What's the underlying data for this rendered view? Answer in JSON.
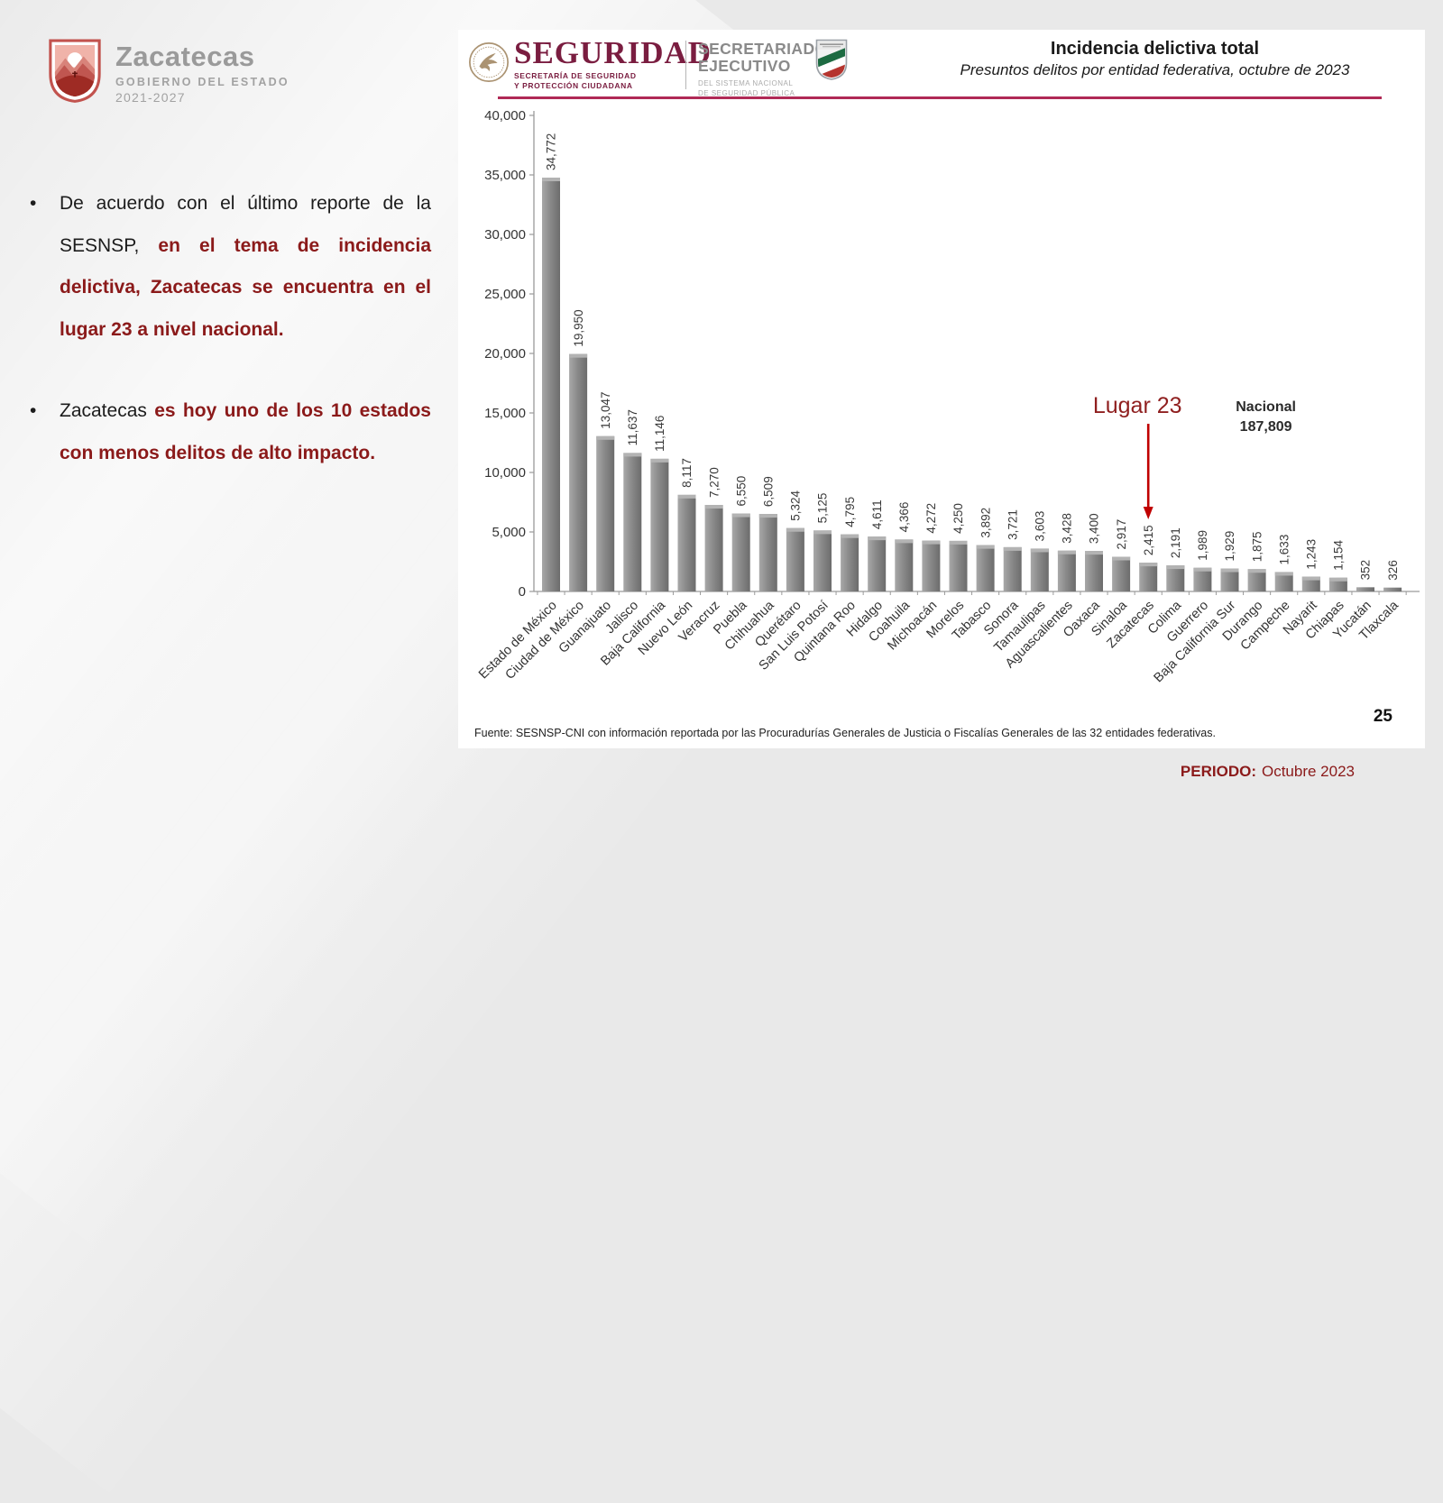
{
  "logo": {
    "name": "Zacatecas",
    "subtitle": "GOBIERNO DEL ESTADO",
    "years": "2021-2027"
  },
  "bullets": [
    {
      "normal": "De acuerdo con el último reporte de la SESNSP, ",
      "highlight": "en el tema de incidencia delictiva, Zacatecas se encuentra en el lugar 23 a nivel nacional."
    },
    {
      "normal": "Zacatecas ",
      "highlight": "es hoy uno de los 10 estados con menos delitos de alto impacto."
    }
  ],
  "header": {
    "brand": "SEGURIDAD",
    "brand_sub1": "SECRETARÍA DE SEGURIDAD",
    "brand_sub2": "Y PROTECCIÓN CIUDADANA",
    "org1": "SECRETARIADO",
    "org2": "EJECUTIVO",
    "org_sub1": "DEL SISTEMA NACIONAL",
    "org_sub2": "DE SEGURIDAD PÚBLICA",
    "title": "Incidencia delictiva total",
    "subtitle": "Presuntos delitos por entidad federativa, octubre de 2023"
  },
  "chart_data": {
    "type": "bar",
    "title": "Incidencia delictiva total",
    "xlabel": "",
    "ylabel": "",
    "ylim": [
      0,
      40000
    ],
    "ytick_step": 5000,
    "grid": false,
    "categories": [
      "Estado de México",
      "Ciudad de México",
      "Guanajuato",
      "Jalisco",
      "Baja California",
      "Nuevo León",
      "Veracruz",
      "Puebla",
      "Chihuahua",
      "Querétaro",
      "San Luis Potosí",
      "Quintana Roo",
      "Hidalgo",
      "Coahuila",
      "Michoacán",
      "Morelos",
      "Tabasco",
      "Sonora",
      "Tamaulipas",
      "Aguascalientes",
      "Oaxaca",
      "Sinaloa",
      "Zacatecas",
      "Colima",
      "Guerrero",
      "Baja California Sur",
      "Durango",
      "Campeche",
      "Nayarit",
      "Chiapas",
      "Yucatán",
      "Tlaxcala"
    ],
    "values": [
      34772,
      19950,
      13047,
      11637,
      11146,
      8117,
      7270,
      6550,
      6509,
      5324,
      5125,
      4795,
      4611,
      4366,
      4272,
      4250,
      3892,
      3721,
      3603,
      3428,
      3400,
      2917,
      2415,
      2191,
      1989,
      1929,
      1875,
      1633,
      1243,
      1154,
      352,
      326
    ],
    "annotations": {
      "lugar_label": "Lugar 23",
      "highlight_index": 22,
      "highlight_state": "Zacatecas",
      "nacional_label": "Nacional",
      "nacional_value": "187,809"
    }
  },
  "footer": {
    "source": "Fuente: SESNSP-CNI con información reportada por las Procuradurías Generales de Justicia o Fiscalías Generales de las 32 entidades federativas."
  },
  "page_number": "25",
  "period": {
    "label": "PERIODO:",
    "value": "Octubre 2023"
  },
  "colors": {
    "brand_maroon": "#7a1d40",
    "rule_crimson": "#b02a56",
    "dark_red_text": "#8b1a1a",
    "annotation_red": "#8f1f1f",
    "arrow_red": "#c00000",
    "bar_gray": "#7f7f7f",
    "axis_gray": "#9a9a9a",
    "value_label": "#3a3a3a"
  }
}
